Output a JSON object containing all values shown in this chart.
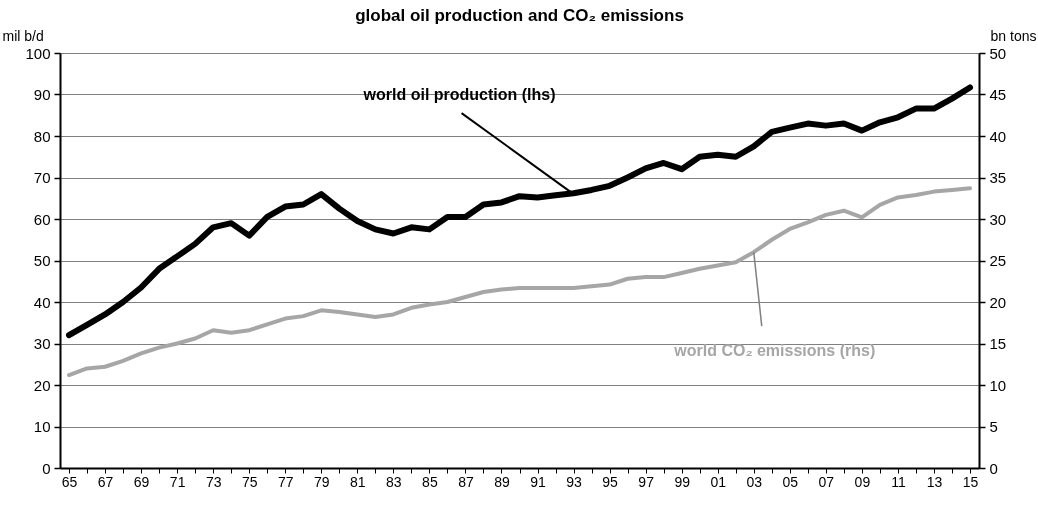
{
  "chart_data": {
    "type": "line",
    "title": "global oil production and CO₂ emissions",
    "ylabel": "mil b/d",
    "y2label": "bn tons",
    "categories": [
      "65",
      null,
      "67",
      null,
      "69",
      null,
      "71",
      null,
      "73",
      null,
      "75",
      null,
      "77",
      null,
      "79",
      null,
      "81",
      null,
      "83",
      null,
      "85",
      null,
      "87",
      null,
      "89",
      null,
      "91",
      null,
      "93",
      null,
      "95",
      null,
      "97",
      null,
      "99",
      null,
      "01",
      null,
      "03",
      null,
      "05",
      null,
      "07",
      null,
      "09",
      null,
      "11",
      null,
      "13",
      null,
      "15"
    ],
    "series": [
      {
        "color": "#000000",
        "values": [
          32,
          34.5,
          37,
          40,
          43.5,
          48,
          51,
          54,
          58,
          59,
          56,
          60.5,
          63,
          63.5,
          66,
          62.5,
          59.5,
          57.5,
          56.5,
          58,
          57.5,
          60.5,
          60.5,
          63.5,
          64,
          65.5,
          65.2,
          65.7,
          66.2,
          67,
          68,
          70,
          72.2,
          73.5,
          72,
          75,
          75.5,
          75,
          77.5,
          81,
          82,
          83,
          82.5,
          83,
          81.3,
          83.3,
          84.5,
          86.6,
          86.6,
          89,
          91.7
        ]
      },
      {
        "color": "#a6a6a6",
        "axis": "y2",
        "values": [
          11.2,
          12,
          12.2,
          12.9,
          13.8,
          14.5,
          15,
          15.6,
          16.6,
          16.3,
          16.6,
          17.3,
          18,
          18.3,
          19,
          18.8,
          18.5,
          18.2,
          18.5,
          19.3,
          19.7,
          20,
          20.6,
          21.2,
          21.5,
          21.7,
          21.7,
          21.7,
          21.7,
          21.9,
          22.1,
          22.8,
          23,
          23,
          23.5,
          24,
          24.4,
          24.8,
          26,
          27.5,
          28.8,
          29.6,
          30.5,
          31,
          30.2,
          31.7,
          32.6,
          32.9,
          33.3,
          33.5,
          33.7
        ]
      }
    ],
    "ylim": [
      0,
      100
    ],
    "yticks": [
      0,
      10,
      20,
      30,
      40,
      50,
      60,
      70,
      80,
      90,
      100
    ],
    "y2lim": [
      0,
      50
    ],
    "y2ticks": [
      0,
      5,
      10,
      15,
      20,
      25,
      30,
      35,
      40,
      45,
      50
    ],
    "grid": "y",
    "annotations": [
      {
        "text": "world oil production (lhs)",
        "x": "93",
        "y": 66
      },
      {
        "text": "world CO₂ emissions (rhs)",
        "x": "03",
        "y": 52
      }
    ]
  }
}
